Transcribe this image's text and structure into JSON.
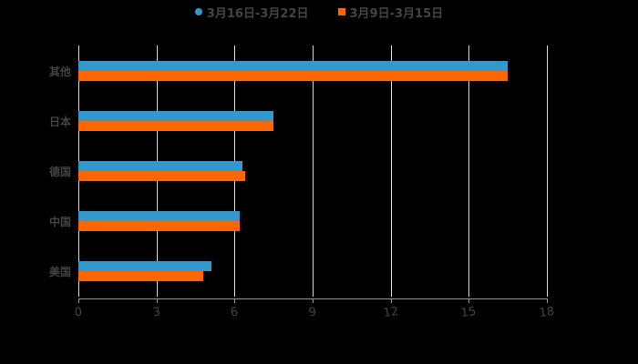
{
  "chart_data": {
    "type": "bar",
    "orientation": "horizontal",
    "title": "",
    "xlabel": "",
    "ylabel": "",
    "categories": [
      "其他",
      "日本",
      "德国",
      "中国",
      "美国"
    ],
    "series": [
      {
        "name": "3月16日-3月22日",
        "color": "#3399CC",
        "values": [
          16.5,
          7.5,
          6.3,
          6.2,
          5.1
        ]
      },
      {
        "name": "3月9日-3月15日",
        "color": "#FF6600",
        "values": [
          16.5,
          7.5,
          6.4,
          6.2,
          4.8
        ]
      }
    ],
    "xlim": [
      0,
      18
    ],
    "x_ticks": [
      "0",
      "3",
      "6",
      "9",
      "12",
      "15",
      "18"
    ],
    "grid": "vertical",
    "legend_position": "top"
  },
  "legend": [
    {
      "label": "3月16日-3月22日",
      "color": "#3399CC",
      "shape": "circle"
    },
    {
      "label": "3月9日-3月15日",
      "color": "#FF6600",
      "shape": "square"
    }
  ]
}
